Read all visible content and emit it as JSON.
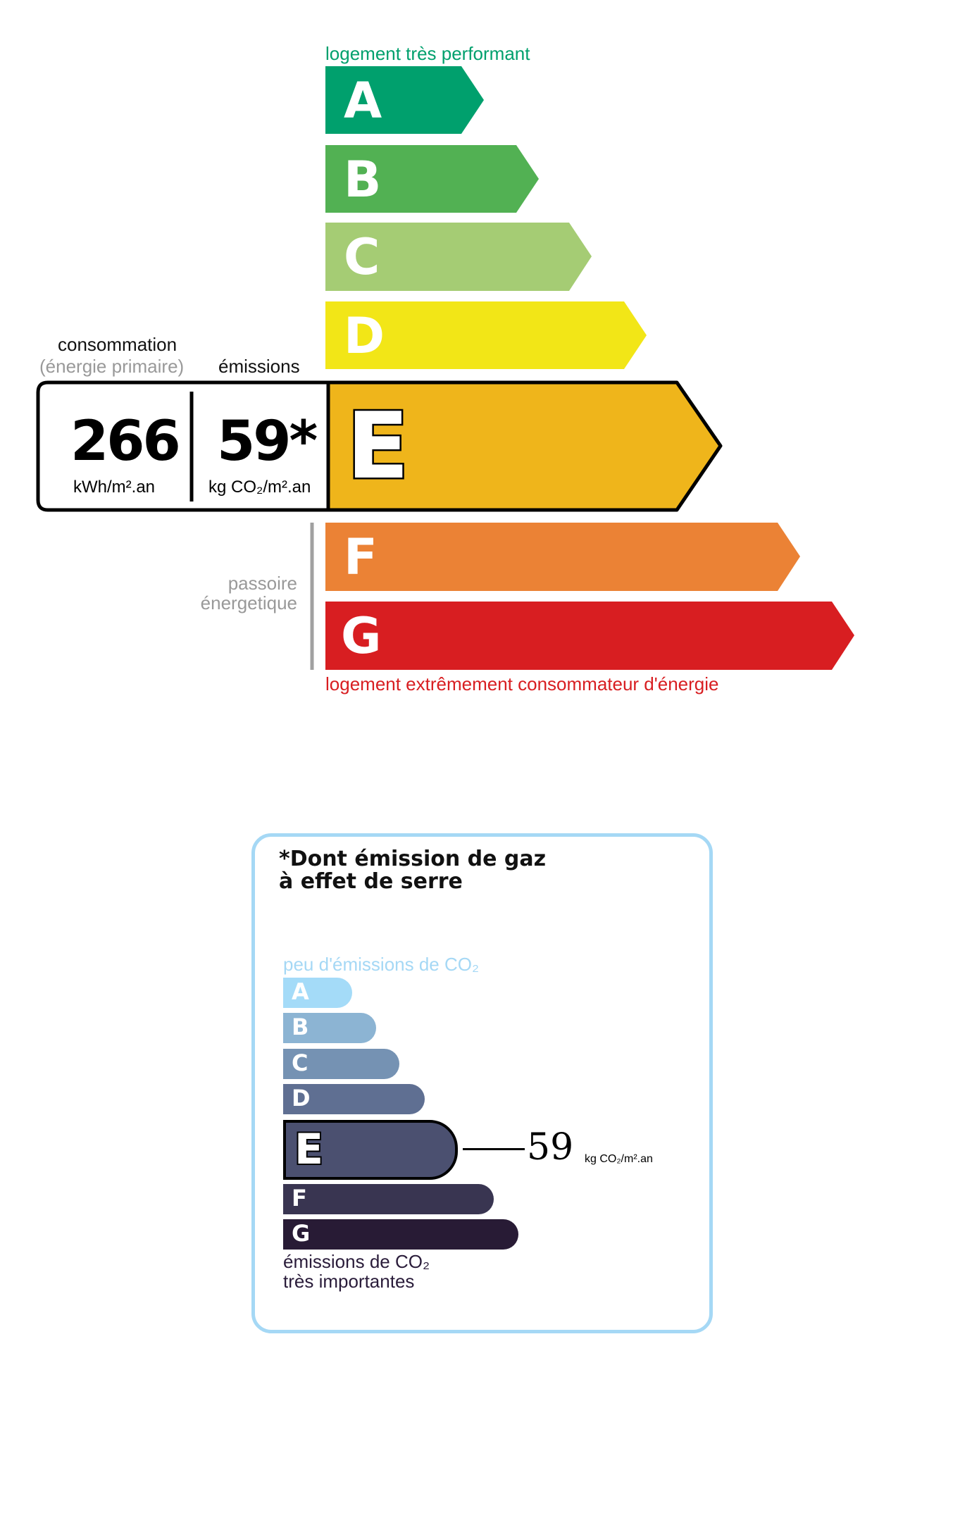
{
  "energy": {
    "top_label": "logement très performant",
    "bottom_label": "logement extrêmement consommateur d'énergie",
    "passoire_line1": "passoire",
    "passoire_line2": "énergetique",
    "classes": [
      {
        "letter": "A",
        "color": "#00a06d"
      },
      {
        "letter": "B",
        "color": "#52b153"
      },
      {
        "letter": "C",
        "color": "#a5cc74"
      },
      {
        "letter": "D",
        "color": "#f2e617"
      },
      {
        "letter": "E",
        "color": "#efb51b"
      },
      {
        "letter": "F",
        "color": "#eb8235"
      },
      {
        "letter": "G",
        "color": "#d81e21"
      }
    ],
    "current_class": "E",
    "consumption_label": "consommation",
    "consumption_sublabel": "(énergie primaire)",
    "emissions_label": "émissions",
    "consumption_value": "266",
    "consumption_unit": "kWh/m².an",
    "emissions_value": "59*",
    "emissions_unit": "kg CO₂/m².an"
  },
  "ges": {
    "title_line1": "*Dont émission de gaz",
    "title_line2": "à effet de serre",
    "top_label": "peu d'émissions de CO₂",
    "bottom_line1": "émissions de CO₂",
    "bottom_line2": "très importantes",
    "classes": [
      {
        "letter": "A",
        "color": "#a4dbf8"
      },
      {
        "letter": "B",
        "color": "#8cb4d3"
      },
      {
        "letter": "C",
        "color": "#7592b3"
      },
      {
        "letter": "D",
        "color": "#5f6f92"
      },
      {
        "letter": "E",
        "color": "#4b5070"
      },
      {
        "letter": "F",
        "color": "#393551"
      },
      {
        "letter": "G",
        "color": "#281b35"
      }
    ],
    "current_class": "E",
    "value": "59",
    "unit": "kg CO₂/m².an",
    "border_color": "#a5d8f5"
  }
}
